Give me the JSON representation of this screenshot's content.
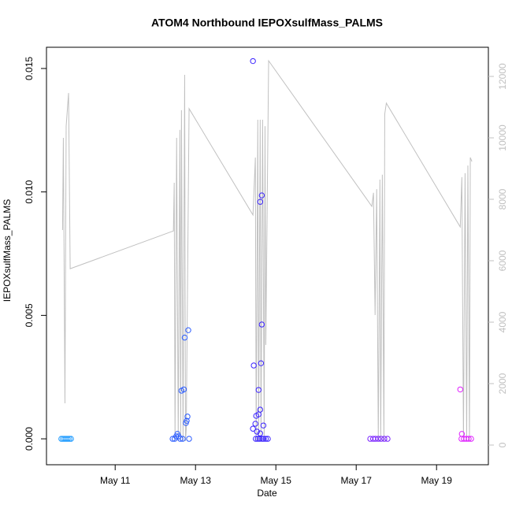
{
  "chart_data": {
    "type": "scatter",
    "title": "ATOM4 Northbound IEPOXsulfMass_PALMS",
    "x_label": "Date",
    "y_label": "IEPOXsulfMass_PALMS",
    "xlim": [
      9.29,
      20.29
    ],
    "xticks": [
      {
        "value": 11,
        "label": "May 11"
      },
      {
        "value": 13,
        "label": "May 13"
      },
      {
        "value": 15,
        "label": "May 15"
      },
      {
        "value": 17,
        "label": "May 17"
      },
      {
        "value": 19,
        "label": "May 19"
      }
    ],
    "ylim": [
      -0.00105,
      0.01586
    ],
    "yticks": [
      {
        "value": 0,
        "label": "0.000"
      },
      {
        "value": 0.005,
        "label": "0.005"
      },
      {
        "value": 0.01,
        "label": "0.010"
      },
      {
        "value": 0.015,
        "label": "0.015"
      }
    ],
    "y2lim": [
      -641,
      12949
    ],
    "y2ticks": [
      0,
      2000,
      4000,
      6000,
      8000,
      10000,
      12000
    ],
    "y2_color": "#c0c0c0",
    "series": [
      {
        "type": "scatter",
        "x": [
          9.66,
          9.7,
          9.74,
          9.78,
          9.82,
          9.86,
          9.9,
          12.43,
          12.48,
          12.52,
          12.55,
          12.58,
          12.62,
          12.65,
          12.71,
          12.73,
          12.82,
          12.8,
          12.78,
          12.76,
          12.68,
          12.84,
          14.43,
          14.45,
          14.57,
          14.61,
          14.65,
          14.65,
          14.63,
          14.61,
          14.57,
          14.51,
          14.49,
          14.43,
          14.69,
          14.53,
          14.61,
          14.5,
          14.55,
          14.6,
          14.66,
          14.7,
          14.75,
          14.8,
          17.35,
          17.42,
          17.48,
          17.55,
          17.62,
          17.7,
          17.78,
          19.59,
          19.63,
          19.62,
          19.68,
          19.74,
          19.8,
          19.86
        ],
        "values": [
          0,
          0,
          0,
          0,
          0,
          0,
          0,
          0,
          0,
          0.0001,
          0.0002,
          0.0001,
          0,
          0.00195,
          0.002,
          0.0041,
          0.0044,
          0.0009,
          0.00073,
          0.00064,
          0,
          0,
          0.0153,
          0.00297,
          0.00198,
          0.0096,
          0.00986,
          0.00463,
          0.00306,
          0.00118,
          0.00099,
          0.00093,
          0.00061,
          0.00041,
          0.00054,
          0.00029,
          0.00022,
          0,
          0,
          0,
          0,
          0,
          0,
          0,
          0,
          0,
          0,
          0,
          0,
          0,
          0,
          0.002,
          0.0002,
          0,
          0,
          0,
          0,
          0
        ],
        "colors": [
          "#1e9bff",
          "#1e9bff",
          "#1e9bff",
          "#1e9bff",
          "#1e9bff",
          "#1e9bff",
          "#1e9bff",
          "#2b5cff",
          "#2b5cff",
          "#2b5cff",
          "#2b5cff",
          "#2b5cff",
          "#2b5cff",
          "#2b5cff",
          "#2b5cff",
          "#2b5cff",
          "#2b5cff",
          "#2b5cff",
          "#2b5cff",
          "#2b5cff",
          "#2b5cff",
          "#2b5cff",
          "#3a22ff",
          "#3a22ff",
          "#3a22ff",
          "#3a22ff",
          "#3a22ff",
          "#3a22ff",
          "#3a22ff",
          "#3a22ff",
          "#3a22ff",
          "#3a22ff",
          "#3a22ff",
          "#3a22ff",
          "#3a22ff",
          "#3a22ff",
          "#3a22ff",
          "#3a22ff",
          "#3a22ff",
          "#3a22ff",
          "#3a22ff",
          "#3a22ff",
          "#3a22ff",
          "#3a22ff",
          "#7a22ff",
          "#7a22ff",
          "#7a22ff",
          "#7a22ff",
          "#7a22ff",
          "#7a22ff",
          "#7a22ff",
          "#e020ff",
          "#e020ff",
          "#e020ff",
          "#e020ff",
          "#e020ff",
          "#e020ff",
          "#e020ff"
        ]
      },
      {
        "type": "line",
        "axis": "y2",
        "color": "#c0c0c0",
        "x": [
          9.69,
          9.71,
          9.75,
          9.78,
          9.84,
          9.88,
          12.45,
          12.47,
          12.49,
          12.53,
          12.57,
          12.61,
          12.63,
          12.65,
          12.69,
          12.73,
          12.75,
          12.77,
          12.84,
          14.43,
          14.49,
          14.51,
          14.55,
          14.57,
          14.61,
          14.63,
          14.67,
          14.71,
          14.73,
          14.75,
          14.82,
          17.39,
          17.43,
          17.47,
          17.51,
          17.55,
          17.59,
          17.61,
          17.65,
          17.69,
          17.71,
          17.75,
          19.59,
          19.63,
          19.67,
          19.71,
          19.75,
          19.78,
          19.82,
          19.84,
          19.88
        ],
        "values": [
          7000,
          10000,
          1360,
          10380,
          11460,
          5740,
          6970,
          8540,
          130,
          10000,
          130,
          10260,
          130,
          10900,
          130,
          12050,
          130,
          500,
          10950,
          7490,
          9360,
          130,
          10590,
          130,
          10590,
          130,
          10590,
          130,
          10380,
          3260,
          12510,
          7770,
          8210,
          4230,
          8330,
          130,
          8640,
          130,
          8800,
          130,
          10770,
          11130,
          7100,
          8720,
          130,
          8850,
          130,
          9100,
          130,
          9360,
          9230
        ]
      }
    ]
  }
}
